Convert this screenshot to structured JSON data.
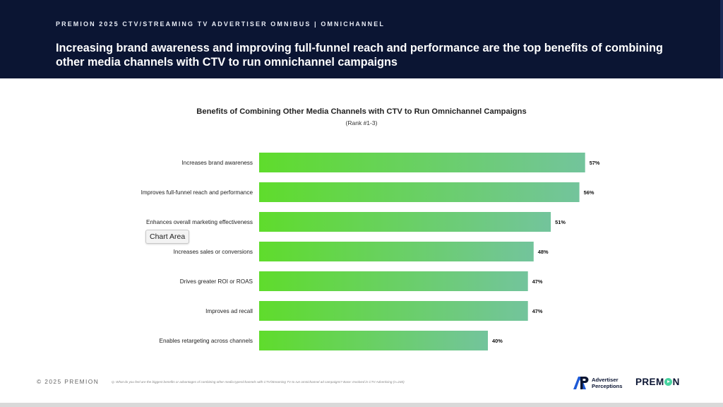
{
  "header": {
    "eyebrow": "PREMION 2025 CTV/STREAMING TV ADVERTISER OMNIBUS | OMNICHANNEL",
    "headline": "Increasing brand awareness and improving full-funnel reach and performance are the top benefits of combining other media channels with CTV to run omnichannel campaigns"
  },
  "chart_data": {
    "type": "bar",
    "orientation": "horizontal",
    "title": "Benefits of Combining Other Media Channels with CTV to Run Omnichannel Campaigns",
    "subtitle": "(Rank #1-3)",
    "categories": [
      "Increases brand awareness",
      "Improves full-funnel reach and performance",
      "Enhances overall marketing effectiveness",
      "Increases sales or conversions",
      "Drives greater ROI or ROAS",
      "Improves ad recall",
      "Enables retargeting across channels"
    ],
    "values": [
      57,
      56,
      51,
      48,
      47,
      47,
      40
    ],
    "value_labels": [
      "57%",
      "56%",
      "51%",
      "48%",
      "47%",
      "47%",
      "40%"
    ],
    "unit": "%",
    "xlim": [
      0,
      100
    ],
    "grid": false,
    "legend": "none",
    "bar_gradient": [
      "#5fdc2c",
      "#73c49c"
    ]
  },
  "tooltip": {
    "text": "Chart Area"
  },
  "footer": {
    "copyright": "© 2025 PREMION",
    "footnote": "Q. What do you feel are the biggest benefits or advantages of combining other media types/channels with CTV/Streaming TV to run omnichannel ad campaigns? Base: Involved in CTV Advertising (n=240)",
    "ap_line1": "Advertiser",
    "ap_line2": "Perceptions",
    "premion_pre": "PREM",
    "premion_post": "N"
  }
}
